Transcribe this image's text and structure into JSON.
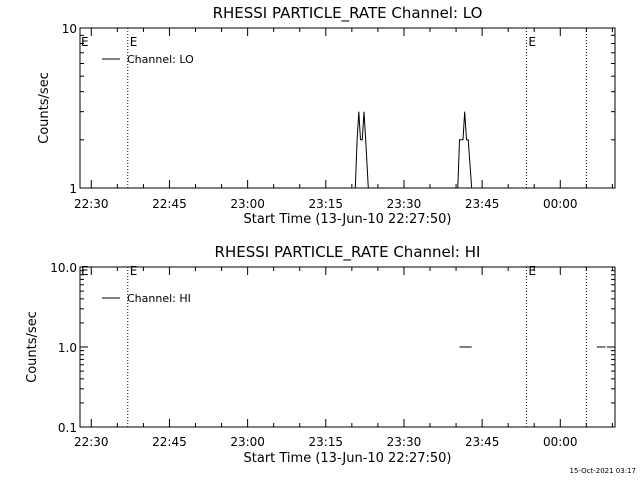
{
  "chart_data": [
    {
      "type": "line",
      "title": "RHESSI PARTICLE_RATE Channel: LO",
      "xlabel": "Start Time (13-Jun-10 22:27:50)",
      "ylabel": "Counts/sec",
      "y_scale": "log",
      "ylim": [
        1,
        10
      ],
      "y_ticks": [
        {
          "value": 1,
          "label": "1"
        },
        {
          "value": 10,
          "label": "10"
        }
      ],
      "xlim": [
        "22:27:50",
        "00:10:30"
      ],
      "x_ticks": [
        "22:30",
        "22:45",
        "23:00",
        "23:15",
        "23:30",
        "23:45",
        "00:00"
      ],
      "legend": {
        "placement": "top-left",
        "label": "Channel: LO"
      },
      "markers": [
        {
          "time": "22:37:00",
          "label": "E"
        },
        {
          "time": "23:53:30",
          "label": "E"
        },
        {
          "time": "00:05:00",
          "label": ""
        }
      ],
      "series": [
        {
          "name": "Channel: LO",
          "points": [
            {
              "t": "23:20:40",
              "v": 1
            },
            {
              "t": "23:21:00",
              "v": 2
            },
            {
              "t": "23:21:20",
              "v": 3
            },
            {
              "t": "23:21:40",
              "v": 2
            },
            {
              "t": "23:22:00",
              "v": 2
            },
            {
              "t": "23:22:20",
              "v": 3
            },
            {
              "t": "23:22:40",
              "v": 2
            },
            {
              "t": "23:23:10",
              "v": 1
            },
            {
              "t": "23:40:20",
              "v": 1
            },
            {
              "t": "23:40:40",
              "v": 2
            },
            {
              "t": "23:41:20",
              "v": 2
            },
            {
              "t": "23:41:40",
              "v": 3
            },
            {
              "t": "23:42:00",
              "v": 2
            },
            {
              "t": "23:42:20",
              "v": 2
            },
            {
              "t": "23:43:00",
              "v": 1
            }
          ]
        }
      ]
    },
    {
      "type": "line",
      "title": "RHESSI PARTICLE_RATE Channel: HI",
      "xlabel": "Start Time (13-Jun-10 22:27:50)",
      "ylabel": "Counts/sec",
      "y_scale": "log",
      "ylim": [
        0.1,
        10
      ],
      "y_ticks": [
        {
          "value": 0.1,
          "label": "0.1"
        },
        {
          "value": 1,
          "label": "1.0"
        },
        {
          "value": 10,
          "label": "10.0"
        }
      ],
      "xlim": [
        "22:27:50",
        "00:10:30"
      ],
      "x_ticks": [
        "22:30",
        "22:45",
        "23:00",
        "23:15",
        "23:30",
        "23:45",
        "00:00"
      ],
      "legend": {
        "placement": "top-left",
        "label": "Channel: HI"
      },
      "markers": [
        {
          "time": "22:37:00",
          "label": "E"
        },
        {
          "time": "23:53:30",
          "label": "E"
        },
        {
          "time": "00:05:00",
          "label": ""
        }
      ],
      "series": [
        {
          "name": "Channel: HI",
          "segments": [
            [
              {
                "t": "23:40:40",
                "v": 1
              },
              {
                "t": "23:43:00",
                "v": 1
              }
            ],
            [
              {
                "t": "00:07:00",
                "v": 1
              },
              {
                "t": "00:08:40",
                "v": 1
              }
            ]
          ]
        }
      ]
    }
  ],
  "timestamp": "15-Oct-2021 03:17"
}
